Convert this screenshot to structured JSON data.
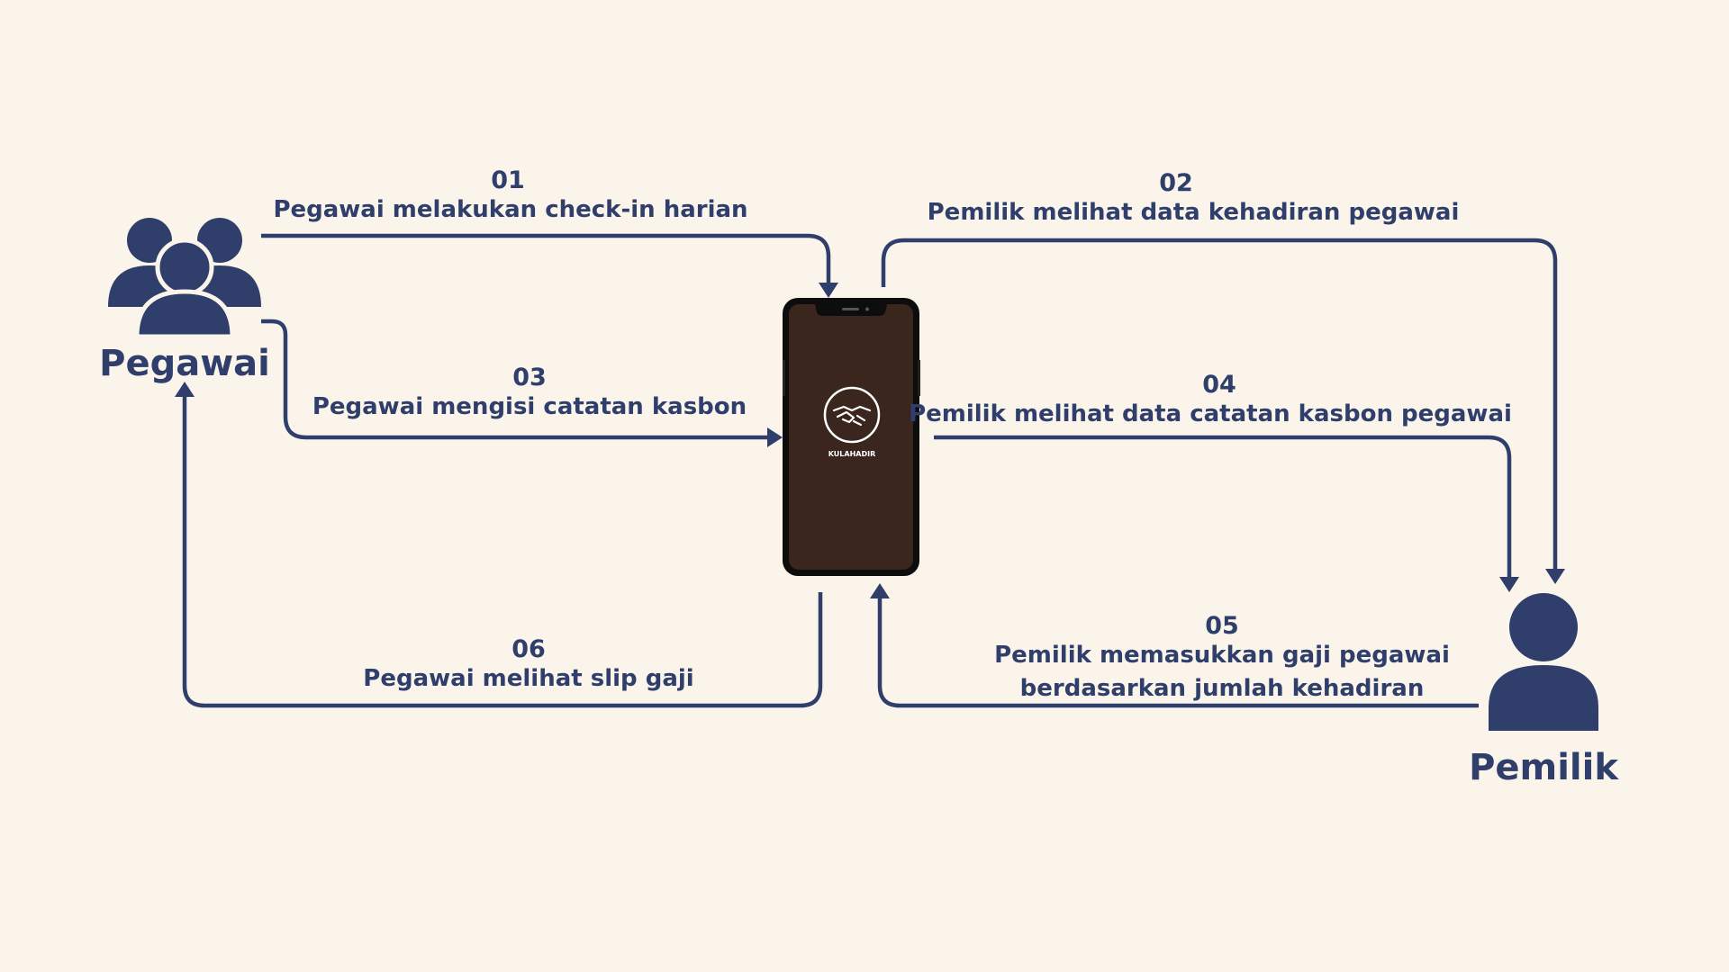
{
  "colors": {
    "background": "#faf4eb",
    "primary": "#2f3e6b",
    "phone_screen": "#3a261d",
    "phone_frame": "#0d0d0d"
  },
  "actors": {
    "employee": {
      "label": "Pegawai",
      "icon": "users-group-icon"
    },
    "owner": {
      "label": "Pemilik",
      "icon": "user-icon"
    }
  },
  "phone": {
    "app_name": "KULAHADIR",
    "logo_icon": "handshake-icon"
  },
  "steps": [
    {
      "number": "01",
      "lines": [
        "Pegawai melakukan check-in harian"
      ]
    },
    {
      "number": "02",
      "lines": [
        "Pemilik melihat data kehadiran pegawai"
      ]
    },
    {
      "number": "03",
      "lines": [
        "Pegawai mengisi catatan kasbon"
      ]
    },
    {
      "number": "04",
      "lines": [
        "Pemilik melihat data catatan kasbon pegawai"
      ]
    },
    {
      "number": "05",
      "lines": [
        "Pemilik memasukkan gaji pegawai",
        "berdasarkan jumlah kehadiran"
      ]
    },
    {
      "number": "06",
      "lines": [
        "Pegawai melihat slip gaji"
      ]
    }
  ]
}
